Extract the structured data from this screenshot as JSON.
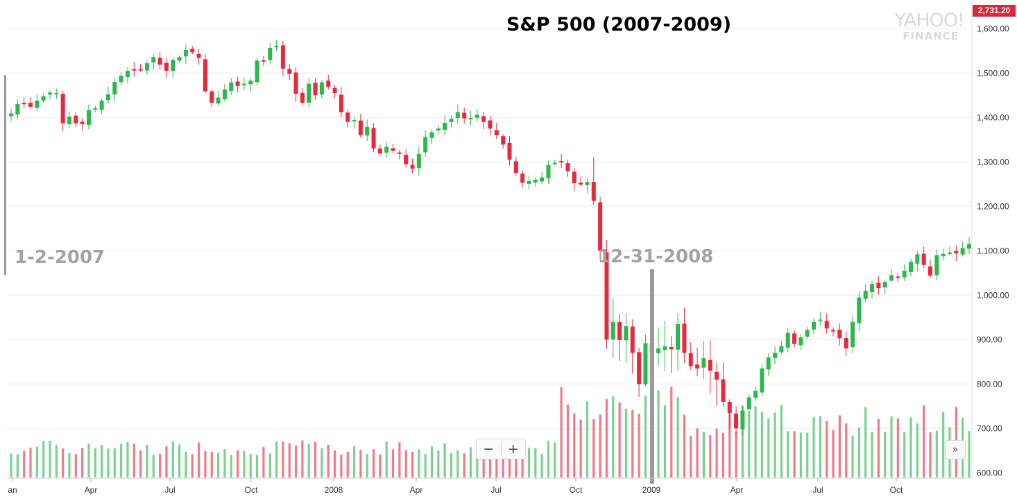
{
  "title": "S&P 500 (2007-2009)",
  "annotations": {
    "start": "1-2-2007",
    "end": "12-31-2008"
  },
  "brand": {
    "line1": "YAHOO!",
    "line2": "FINANCE"
  },
  "last_price": "2,731.20",
  "controls": {
    "zoom_out": "−",
    "zoom_in": "+",
    "more": "»"
  },
  "colors": {
    "up": "#2db84d",
    "down": "#e8283e",
    "vol_up": "#7bd191",
    "vol_down": "#f07a88",
    "marker": "#9a9a9a"
  },
  "chart_data": {
    "type": "candlestick",
    "title": "S&P 500 (2007-2009)",
    "ylim": [
      600,
      1625
    ],
    "x_ticks": [
      "Jan",
      "Apr",
      "Jul",
      "Oct",
      "2008",
      "Apr",
      "Jul",
      "Oct",
      "2009",
      "Apr",
      "Jul",
      "Oct"
    ],
    "y_ticks": [
      "1,600.00",
      "1,500.00",
      "1,400.00",
      "1,300.00",
      "1,200.00",
      "1,100.00",
      "1,000.00",
      "900.00",
      "800.00",
      "700.00",
      "600.00"
    ],
    "grid": true,
    "markers": [
      {
        "label": "1-2-2007",
        "week": 0
      },
      {
        "label": "12-31-2008",
        "week": 104
      }
    ],
    "weekly_ohlc_close": [
      1409,
      1430,
      1431,
      1424,
      1438,
      1448,
      1456,
      1455,
      1387,
      1402,
      1387,
      1385,
      1417,
      1421,
      1438,
      1452,
      1480,
      1494,
      1505,
      1508,
      1507,
      1522,
      1536,
      1519,
      1505,
      1530,
      1536,
      1552,
      1547,
      1534,
      1459,
      1433,
      1445,
      1463,
      1479,
      1471,
      1476,
      1483,
      1528,
      1526,
      1557,
      1561,
      1510,
      1498,
      1453,
      1433,
      1476,
      1450,
      1479,
      1469,
      1455,
      1412,
      1390,
      1394,
      1360,
      1379,
      1330,
      1319,
      1334,
      1325,
      1320,
      1295,
      1285,
      1318,
      1356,
      1367,
      1375,
      1388,
      1397,
      1412,
      1398,
      1399,
      1406,
      1390,
      1375,
      1360,
      1339,
      1305,
      1275,
      1253,
      1257,
      1260,
      1265,
      1293,
      1298,
      1301,
      1279,
      1252,
      1249,
      1255,
      1212,
      1100,
      900,
      940,
      899,
      930,
      870,
      800,
      892,
      873,
      880,
      885,
      878,
      935,
      870,
      840,
      835,
      858,
      830,
      810,
      760,
      735,
      700,
      740,
      770,
      785,
      835,
      860,
      870,
      885,
      915,
      890,
      905,
      922,
      940,
      945,
      925,
      920,
      903,
      880,
      940,
      995,
      1010,
      1025,
      1016,
      1030,
      1045,
      1040,
      1055,
      1075,
      1092,
      1068,
      1044,
      1090,
      1093,
      1096,
      1094,
      1106,
      1115
    ],
    "weekly_volume_shape": "volume bars in lower panel, scaled relative to weekly activity"
  }
}
